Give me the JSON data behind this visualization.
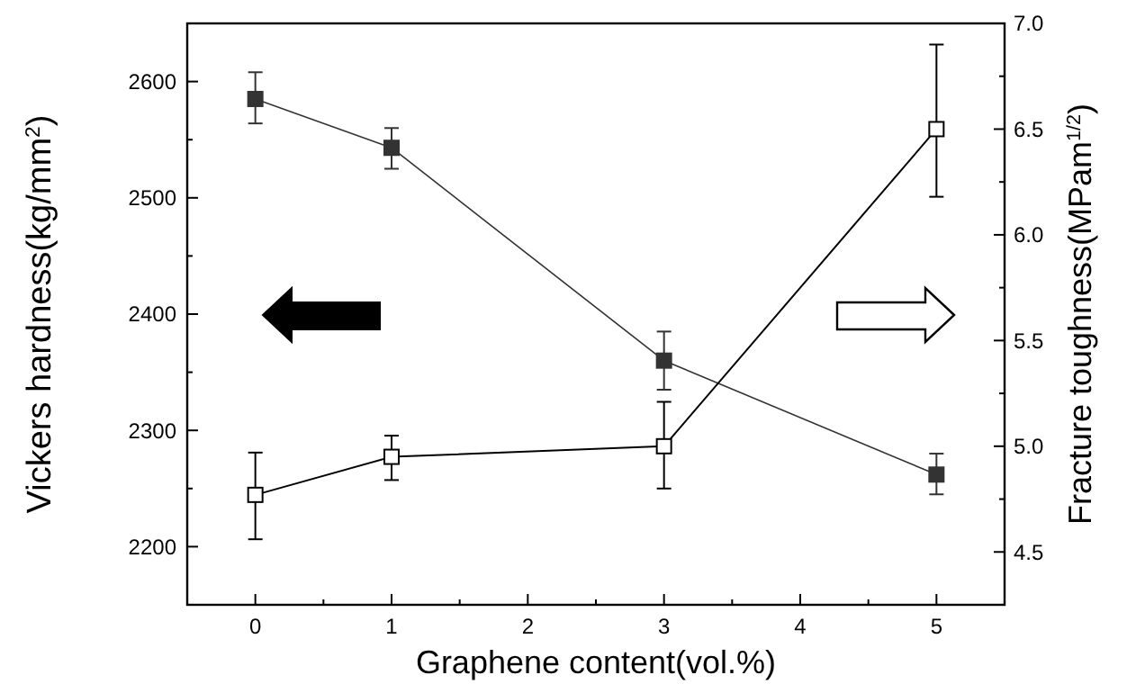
{
  "chart_data": {
    "type": "line",
    "xlabel": "Graphene content(vol.%)",
    "ylabel": "Vickers hardness(kg/mm$^{2}$)",
    "y2label": "Fracture toughness(MPam$^{1/2}$)",
    "x": [
      0,
      1,
      3,
      5
    ],
    "xlim": [
      -0.5,
      5.5
    ],
    "xticks": [
      0,
      {
        "value": 0.5,
        "label": null
      },
      1,
      {
        "value": 1.5,
        "label": null
      },
      2,
      {
        "value": 2.5,
        "label": null
      },
      3,
      {
        "value": 3.5,
        "label": null
      },
      4,
      {
        "value": 4.5,
        "label": null
      },
      5
    ],
    "ylim": [
      2150,
      2650
    ],
    "yticks": [
      2200,
      {
        "value": 2250,
        "label": null
      },
      2300,
      {
        "value": 2350,
        "label": null
      },
      2400,
      {
        "value": 2450,
        "label": null
      },
      2500,
      {
        "value": 2550,
        "label": null
      },
      2600
    ],
    "y2lim": [
      4.25,
      7.0
    ],
    "y2ticks": [
      {
        "value": 4.5,
        "label": "4.5"
      },
      {
        "value": 4.75,
        "label": null
      },
      {
        "value": 5,
        "label": "5.0"
      },
      {
        "value": 5.25,
        "label": null
      },
      {
        "value": 5.5,
        "label": "5.5"
      },
      {
        "value": 5.75,
        "label": null
      },
      {
        "value": 6,
        "label": "6.0"
      },
      {
        "value": 6.25,
        "label": null
      },
      {
        "value": 6.5,
        "label": "6.5"
      },
      {
        "value": 6.75,
        "label": null
      },
      {
        "value": 7,
        "label": "7.0"
      }
    ],
    "marker": "square",
    "grid": false,
    "series": [
      {
        "color": "#333333",
        "values": [
          2585,
          2543,
          2360,
          2262
        ],
        "errors": [
          [
            2564,
            2608
          ],
          [
            2525,
            2560
          ],
          [
            2335,
            2385
          ],
          [
            2245,
            2280
          ]
        ]
      },
      {
        "color": "#000000",
        "axis": "y2",
        "values": [
          4.77,
          4.95,
          5.0,
          6.5
        ],
        "errors": [
          [
            4.56,
            4.97
          ],
          [
            4.84,
            5.05
          ],
          [
            4.8,
            5.21
          ],
          [
            6.18,
            6.9
          ]
        ]
      }
    ]
  }
}
